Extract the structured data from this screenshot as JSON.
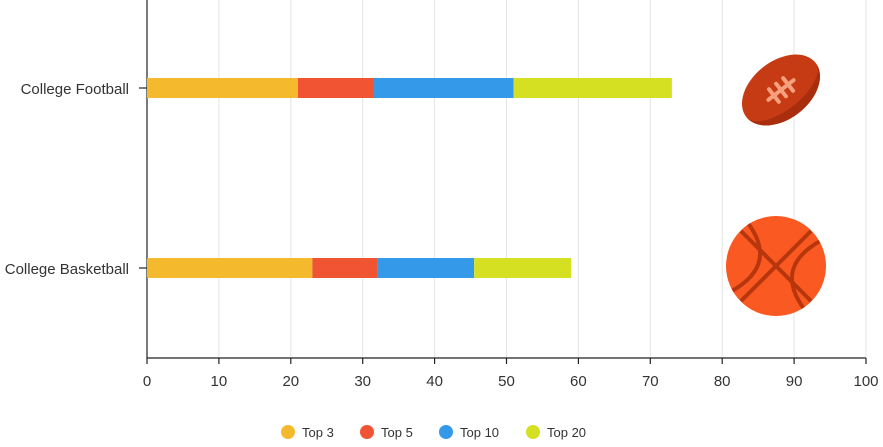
{
  "chart_data": {
    "type": "bar",
    "orientation": "horizontal",
    "stacked": true,
    "categories": [
      "College Football",
      "College Basketball"
    ],
    "series": [
      {
        "name": "Top 3",
        "color": "#f5b92e",
        "values": [
          21,
          23
        ]
      },
      {
        "name": "Top 5",
        "color": "#f05432",
        "values": [
          10.5,
          9
        ]
      },
      {
        "name": "Top 10",
        "color": "#3399e8",
        "values": [
          19.5,
          13.5
        ]
      },
      {
        "name": "Top 20",
        "color": "#d4e021",
        "values": [
          22,
          13.5
        ]
      }
    ],
    "xlim": [
      0,
      100
    ],
    "xticks": [
      "0",
      "10",
      "20",
      "30",
      "40",
      "50",
      "60",
      "70",
      "80",
      "90",
      "100"
    ],
    "grid": true,
    "legend_position": "bottom",
    "icons": [
      "football-icon",
      "basketball-icon"
    ]
  }
}
